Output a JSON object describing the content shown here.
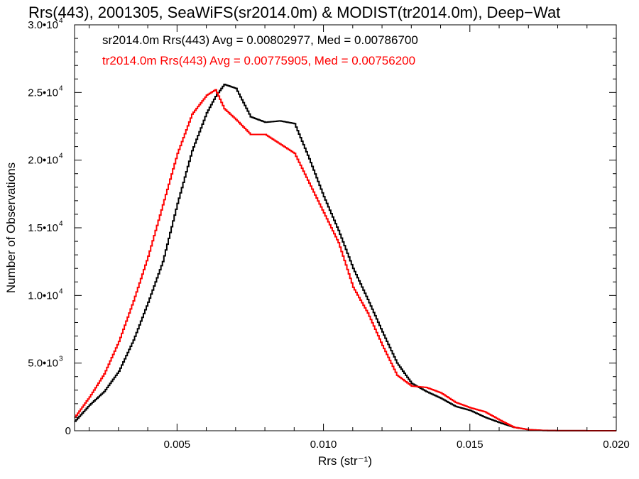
{
  "chart_data": {
    "type": "line",
    "title": "Rrs(443), 2001305, SeaWiFS(sr2014.0m) & MODIST(tr2014.0m), Deep−Wat",
    "xlabel": "Rrs (str⁻¹)",
    "ylabel": "Number of Observations",
    "xlim": [
      0.0015,
      0.02
    ],
    "ylim": [
      0,
      30000
    ],
    "x_ticks": [
      {
        "value": 0.005,
        "label": "0.005"
      },
      {
        "value": 0.01,
        "label": "0.010"
      },
      {
        "value": 0.015,
        "label": "0.015"
      },
      {
        "value": 0.02,
        "label": "0.020"
      }
    ],
    "y_ticks": [
      {
        "value": 0,
        "label": "0",
        "exp": ""
      },
      {
        "value": 5000,
        "label": "5.0•10",
        "exp": "3"
      },
      {
        "value": 10000,
        "label": "1.0•10",
        "exp": "4"
      },
      {
        "value": 15000,
        "label": "1.5•10",
        "exp": "4"
      },
      {
        "value": 20000,
        "label": "2.0•10",
        "exp": "4"
      },
      {
        "value": 25000,
        "label": "2.5•10",
        "exp": "4"
      },
      {
        "value": 30000,
        "label": "3.0•10",
        "exp": "4"
      }
    ],
    "annotations": [
      {
        "text": "sr2014.0m Rrs(443) Avg = 0.00802977, Med = 0.00786700",
        "color": "#000000"
      },
      {
        "text": "tr2014.0m Rrs(443) Avg = 0.00775905, Med = 0.00756200",
        "color": "#ff0000"
      }
    ],
    "series": [
      {
        "color": "#000000",
        "x": [
          0.0015,
          0.002,
          0.0025,
          0.003,
          0.0035,
          0.004,
          0.0045,
          0.005,
          0.0055,
          0.006,
          0.0063,
          0.0066,
          0.007,
          0.0075,
          0.008,
          0.0085,
          0.009,
          0.0095,
          0.01,
          0.0105,
          0.011,
          0.0115,
          0.012,
          0.0125,
          0.013,
          0.0135,
          0.014,
          0.0145,
          0.015,
          0.0155,
          0.016,
          0.0165,
          0.017,
          0.0175,
          0.018,
          0.019,
          0.02
        ],
        "y": [
          700,
          1900,
          2900,
          4400,
          6700,
          9500,
          12500,
          16800,
          20700,
          23500,
          24700,
          25600,
          25300,
          23200,
          22800,
          22900,
          22700,
          20100,
          17300,
          14800,
          12000,
          9700,
          7300,
          5000,
          3500,
          2900,
          2400,
          1800,
          1500,
          1000,
          600,
          250,
          80,
          20,
          8,
          3,
          0
        ]
      },
      {
        "color": "#ff0000",
        "x": [
          0.0015,
          0.002,
          0.0025,
          0.003,
          0.0035,
          0.004,
          0.0045,
          0.005,
          0.0055,
          0.006,
          0.0063,
          0.0066,
          0.007,
          0.0075,
          0.008,
          0.0085,
          0.009,
          0.0095,
          0.01,
          0.0105,
          0.011,
          0.0115,
          0.012,
          0.0125,
          0.013,
          0.0135,
          0.014,
          0.0145,
          0.015,
          0.0155,
          0.016,
          0.0165,
          0.017,
          0.0175,
          0.018,
          0.019,
          0.02
        ],
        "y": [
          1000,
          2500,
          4200,
          6600,
          9600,
          12900,
          16700,
          20500,
          23400,
          24800,
          25200,
          23800,
          23000,
          21900,
          21900,
          21200,
          20500,
          18300,
          16100,
          13900,
          10600,
          8700,
          6300,
          4100,
          3300,
          3200,
          2800,
          2100,
          1700,
          1400,
          800,
          250,
          80,
          20,
          8,
          3,
          0
        ]
      }
    ]
  }
}
